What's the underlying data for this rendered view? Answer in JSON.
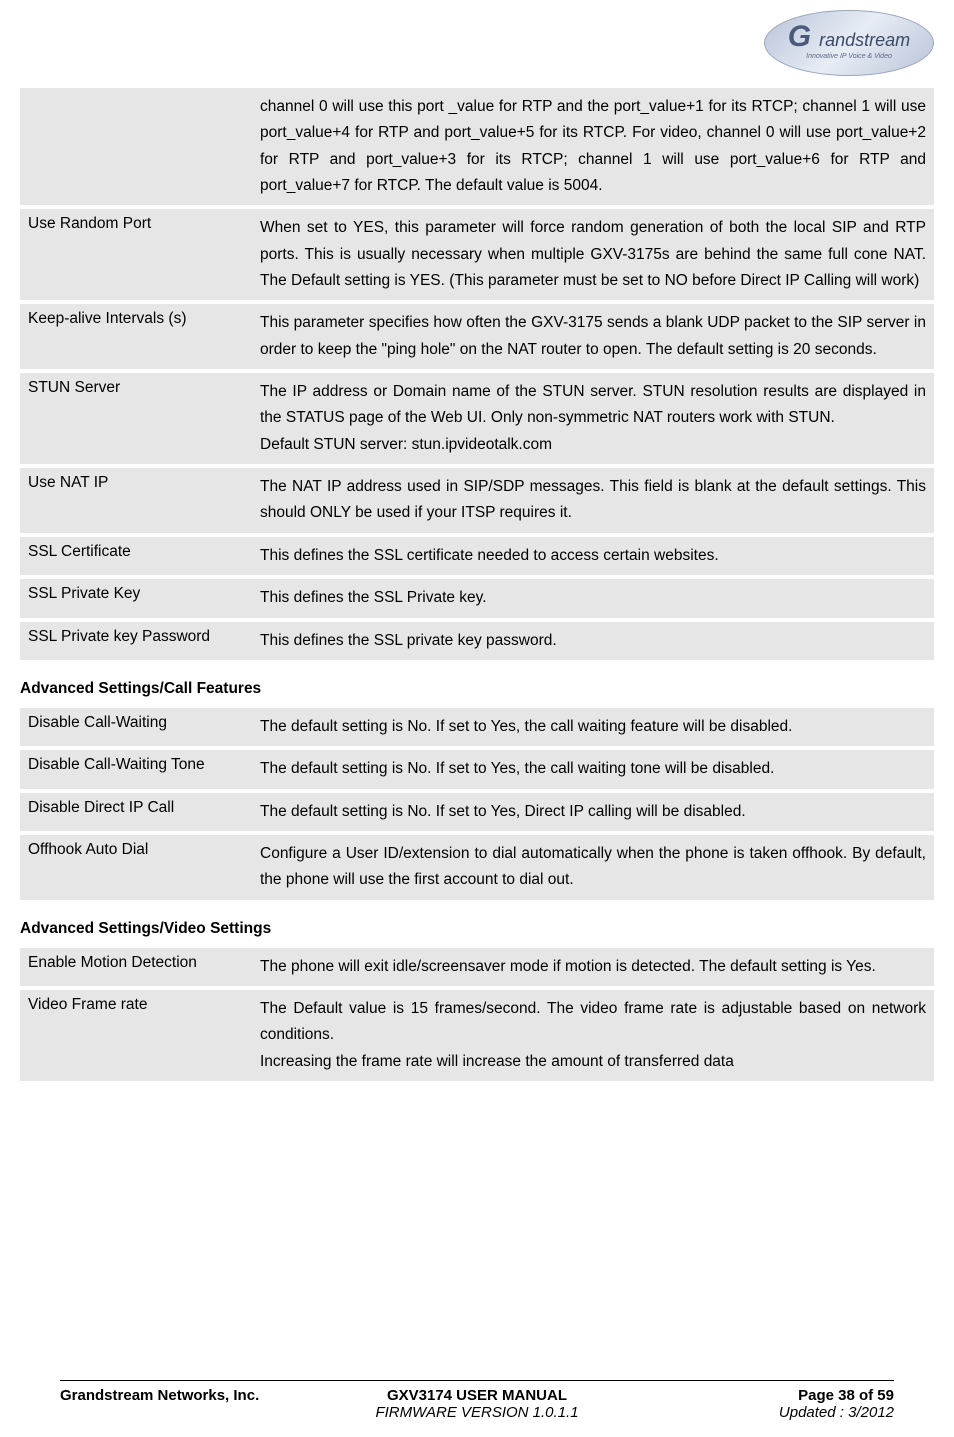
{
  "logo": {
    "brand_g": "G",
    "brand_rest": "randstream",
    "tagline": "Innovative IP Voice & Video"
  },
  "table1": {
    "rows": [
      {
        "label": "",
        "desc": "channel 0 will use this port _value for RTP and the port_value+1 for its RTCP; channel 1 will use port_value+4 for RTP and port_value+5 for its RTCP. For video, channel 0 will use port_value+2 for RTP and port_value+3 for its RTCP; channel 1 will use port_value+6 for RTP and port_value+7 for RTCP. The default value is 5004."
      },
      {
        "label": "Use Random Port",
        "desc": "When set to YES, this parameter will force random generation of both the local SIP and RTP ports. This is usually necessary when multiple GXV-3175s are behind the same full cone NAT. The Default setting is YES. (This parameter must be set to NO before Direct IP Calling will work)"
      },
      {
        "label": "Keep-alive Intervals (s)",
        "desc": "This parameter specifies how often the GXV-3175 sends a blank UDP packet to the SIP server in order to keep the \"ping hole\" on the NAT router to open. The default setting is 20 seconds."
      },
      {
        "label": "STUN Server",
        "desc": "The IP address or Domain name of the STUN server. STUN resolution results are displayed in the STATUS page of the Web UI. Only non-symmetric NAT routers work with STUN.\nDefault STUN server: stun.ipvideotalk.com"
      },
      {
        "label": "Use NAT IP",
        "desc": "The NAT IP address used in SIP/SDP messages. This field is blank at the default settings. This should ONLY be used if your ITSP requires it."
      },
      {
        "label": "SSL Certificate",
        "desc": "This defines the SSL certificate needed to access certain websites."
      },
      {
        "label": "SSL Private Key",
        "desc": "This defines the SSL Private key."
      },
      {
        "label": "SSL Private key Password",
        "desc": "This defines the SSL private key password."
      }
    ]
  },
  "section2_heading": "Advanced Settings/Call Features",
  "table2": {
    "rows": [
      {
        "label": "Disable Call-Waiting",
        "desc": "The default setting is No. If set to Yes, the call waiting feature will be disabled."
      },
      {
        "label": "Disable Call-Waiting Tone",
        "desc": "The default setting is No. If set to Yes, the call waiting tone will be disabled."
      },
      {
        "label": "Disable Direct IP Call",
        "desc": "The default setting is No. If set to Yes, Direct IP calling will be disabled."
      },
      {
        "label": "Offhook Auto Dial",
        "desc": "Configure a User ID/extension to dial automatically when the phone is taken offhook. By default, the phone will use the first account to dial out."
      }
    ]
  },
  "section3_heading": "Advanced Settings/Video Settings",
  "table3": {
    "rows": [
      {
        "label": "Enable Motion Detection",
        "desc": "The phone will exit idle/screensaver mode if motion is detected. The default setting is Yes."
      },
      {
        "label": "Video Frame rate",
        "desc": "The Default value is 15 frames/second. The video frame rate is adjustable based on network conditions.\nIncreasing the frame rate will increase the amount of transferred data"
      }
    ]
  },
  "footer": {
    "company": "Grandstream Networks, Inc.",
    "title": "GXV3174 USER MANUAL",
    "firmware": "FIRMWARE VERSION 1.0.1.1",
    "page": "Page 38 of 59",
    "updated": "Updated : 3/2012"
  }
}
